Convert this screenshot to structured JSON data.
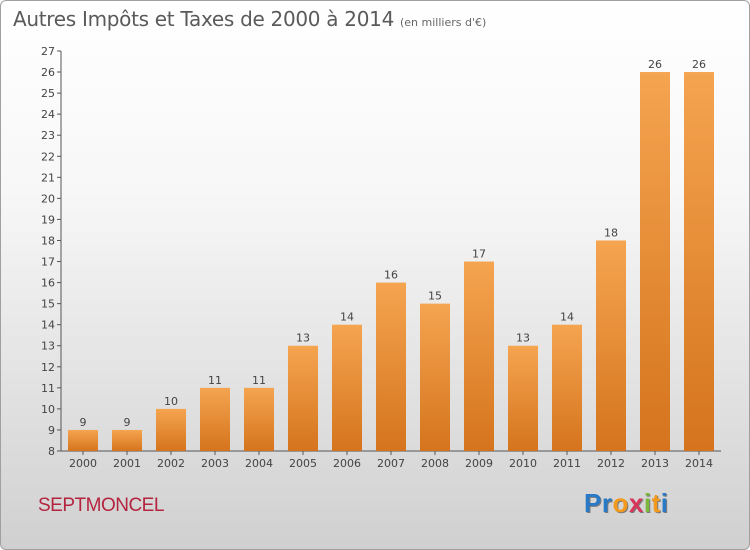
{
  "header": {
    "title": "Autres Impôts et Taxes de 2000 à 2014",
    "unit": "(en milliers d'€)"
  },
  "footer": {
    "commune": "SEPTMONCEL",
    "logo": [
      "P",
      "r",
      "o",
      "x",
      "i",
      "t",
      "i"
    ]
  },
  "colors": {
    "bar_light": "#f5a450",
    "bar_dark": "#d5741d",
    "commune_text": "#b5243f"
  },
  "chart_data": {
    "type": "bar",
    "categories": [
      "2000",
      "2001",
      "2002",
      "2003",
      "2004",
      "2005",
      "2006",
      "2007",
      "2008",
      "2009",
      "2010",
      "2011",
      "2012",
      "2013",
      "2014"
    ],
    "values": [
      9,
      9,
      10,
      11,
      11,
      13,
      14,
      16,
      15,
      17,
      13,
      14,
      18,
      26,
      26
    ],
    "yticks": [
      8,
      9,
      10,
      11,
      12,
      13,
      14,
      15,
      16,
      17,
      18,
      19,
      20,
      21,
      22,
      23,
      24,
      25,
      26,
      27
    ],
    "ylim": [
      8,
      27
    ],
    "grid": false,
    "legend": "none"
  }
}
